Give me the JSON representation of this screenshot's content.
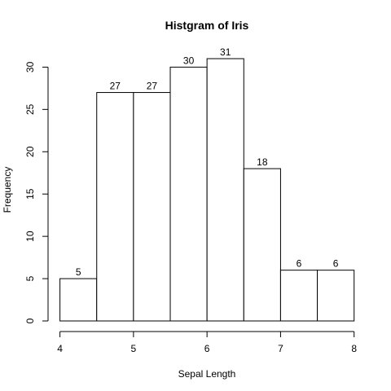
{
  "chart_data": {
    "type": "bar",
    "title": "Histgram of Iris",
    "xlabel": "Sepal Length",
    "ylabel": "Frequency",
    "bins": [
      {
        "from": 4.0,
        "to": 4.5,
        "count": 5
      },
      {
        "from": 4.5,
        "to": 5.0,
        "count": 27
      },
      {
        "from": 5.0,
        "to": 5.5,
        "count": 27
      },
      {
        "from": 5.5,
        "to": 6.0,
        "count": 30
      },
      {
        "from": 6.0,
        "to": 6.5,
        "count": 31
      },
      {
        "from": 6.5,
        "to": 7.0,
        "count": 18
      },
      {
        "from": 7.0,
        "to": 7.5,
        "count": 6
      },
      {
        "from": 7.5,
        "to": 8.0,
        "count": 6
      }
    ],
    "xlim": [
      4,
      8
    ],
    "ylim": [
      0,
      31
    ],
    "x_ticks": [
      "4",
      "5",
      "6",
      "7",
      "8"
    ],
    "y_ticks": [
      "0",
      "5",
      "10",
      "15",
      "20",
      "25",
      "30"
    ],
    "grid": false,
    "legend": "none",
    "bar_fill": "#ffffff",
    "bar_stroke": "#000000"
  }
}
